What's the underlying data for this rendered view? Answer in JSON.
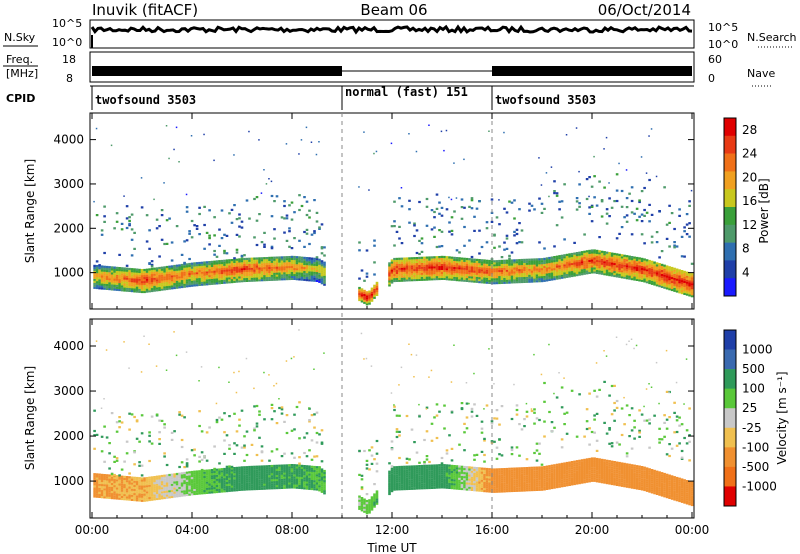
{
  "header": {
    "station": "Inuvik (fitACF)",
    "beam": "Beam 06",
    "date": "06/Oct/2014"
  },
  "strips": {
    "nsky_label": "N.Sky",
    "nsky_ticks": [
      "10^5",
      "10^0"
    ],
    "nsearch_label": "N.Search",
    "freq_label": "Freq.",
    "freq_unit": "[MHz]",
    "freq_ticks": [
      "18",
      "8"
    ],
    "nave_label": "Nave",
    "nave_ticks": [
      "60",
      "0"
    ],
    "cpid_label": "CPID",
    "cpid_segments": [
      {
        "label": "twofsound 3503",
        "start_h": 0,
        "end_h": 10
      },
      {
        "label": "normal (fast) 151",
        "start_h": 10,
        "end_h": 16
      },
      {
        "label": "twofsound 3503",
        "start_h": 16,
        "end_h": 24
      }
    ]
  },
  "axes": {
    "ylabel": "Slant Range [km]",
    "xlabel": "Time UT",
    "x_ticks": [
      "00:00",
      "04:00",
      "08:00",
      "12:00",
      "16:00",
      "20:00",
      "00:00"
    ],
    "y_ticks": [
      "1000",
      "2000",
      "3000",
      "4000"
    ]
  },
  "power_scale": {
    "label": "Power [dB]",
    "ticks": [
      "4",
      "8",
      "12",
      "16",
      "20",
      "24",
      "28"
    ],
    "colors": [
      "#1a1aff",
      "#1f3fa8",
      "#2f6fb0",
      "#4e9a6a",
      "#3aa03a",
      "#c8c81e",
      "#f0a020",
      "#f07018",
      "#e83a14",
      "#e00000"
    ]
  },
  "velocity_scale": {
    "label": "Velocity [m s⁻¹]",
    "ticks": [
      "1000",
      "500",
      "100",
      "25",
      "-25",
      "-100",
      "-500",
      "-1000"
    ],
    "colors": [
      "#1f3fa8",
      "#3a6ab0",
      "#2f9a5a",
      "#5ac83a",
      "#c8c8c8",
      "#f0c050",
      "#f09030",
      "#f07018",
      "#e00000"
    ]
  },
  "chart_data": {
    "type": "heatmap",
    "title": "Inuvik (fitACF) Beam 06 06/Oct/2014",
    "xlabel": "Time UT",
    "ylabel": "Slant Range [km]",
    "xlim": [
      0,
      24
    ],
    "ylim": [
      180,
      4600
    ],
    "power_db_range": [
      0,
      30
    ],
    "velocity_ms_range": [
      -1000,
      1000
    ],
    "main_echo_band": [
      {
        "t": 0,
        "range_km": 900,
        "power_db": 20,
        "velocity_ms": -120
      },
      {
        "t": 2,
        "range_km": 800,
        "power_db": 26,
        "velocity_ms": -90
      },
      {
        "t": 4,
        "range_km": 950,
        "power_db": 22,
        "velocity_ms": 60
      },
      {
        "t": 6,
        "range_km": 1050,
        "power_db": 26,
        "velocity_ms": 150
      },
      {
        "t": 8,
        "range_km": 1100,
        "power_db": 22,
        "velocity_ms": 120
      },
      {
        "t": 9,
        "range_km": 1050,
        "power_db": 18,
        "velocity_ms": 90
      },
      {
        "t": 11,
        "range_km": 400,
        "power_db": 29,
        "velocity_ms": 40
      },
      {
        "t": 12,
        "range_km": 1050,
        "power_db": 26,
        "velocity_ms": 200
      },
      {
        "t": 14,
        "range_km": 1100,
        "power_db": 27,
        "velocity_ms": 150
      },
      {
        "t": 16,
        "range_km": 1000,
        "power_db": 24,
        "velocity_ms": -150
      },
      {
        "t": 18,
        "range_km": 1050,
        "power_db": 22,
        "velocity_ms": -200
      },
      {
        "t": 20,
        "range_km": 1250,
        "power_db": 26,
        "velocity_ms": -150
      },
      {
        "t": 22,
        "range_km": 1050,
        "power_db": 27,
        "velocity_ms": -200
      },
      {
        "t": 24,
        "range_km": 700,
        "power_db": 28,
        "velocity_ms": -300
      }
    ]
  }
}
